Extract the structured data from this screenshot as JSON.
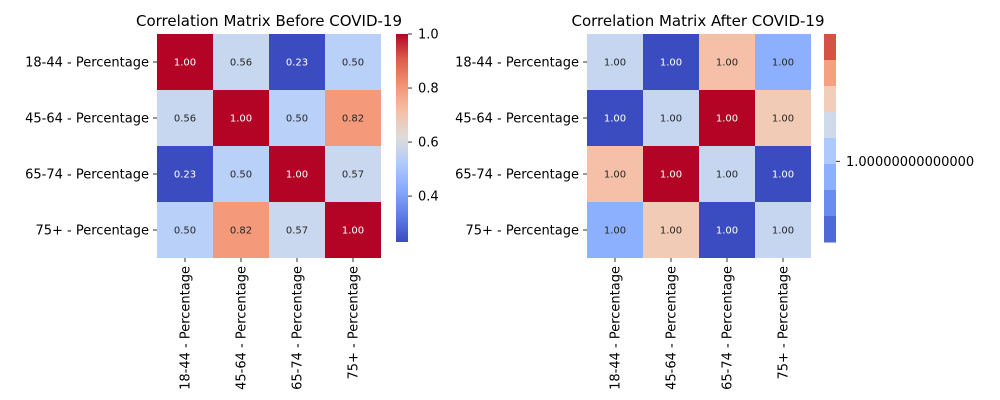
{
  "chart_data": [
    {
      "type": "heatmap",
      "title": "Correlation Matrix Before COVID-19",
      "rows": [
        "18-44 - Percentage",
        "45-64 - Percentage",
        "65-74 - Percentage",
        "75+ - Percentage"
      ],
      "columns": [
        "18-44 - Percentage",
        "45-64 - Percentage",
        "65-74 - Percentage",
        "75+ - Percentage"
      ],
      "values": [
        [
          1.0,
          0.56,
          0.23,
          0.5
        ],
        [
          0.56,
          1.0,
          0.5,
          0.82
        ],
        [
          0.23,
          0.5,
          1.0,
          0.57
        ],
        [
          0.5,
          0.82,
          0.57,
          1.0
        ]
      ],
      "cell_labels": [
        [
          "1.00",
          "0.56",
          "0.23",
          "0.50"
        ],
        [
          "0.56",
          "1.00",
          "0.50",
          "0.82"
        ],
        [
          "0.23",
          "0.50",
          "1.00",
          "0.57"
        ],
        [
          "0.50",
          "0.82",
          "0.57",
          "1.00"
        ]
      ],
      "colormap": "coolwarm",
      "colorbar": {
        "range": [
          0.23,
          1.0
        ],
        "tick_values": [
          0.4,
          0.6,
          0.8,
          1.0
        ],
        "tick_labels": [
          "0.4",
          "0.6",
          "0.8",
          "1.0"
        ]
      },
      "cell_colors": [
        [
          "#b40426",
          "#c7d7f0",
          "#3b4cc0",
          "#b9d0f9"
        ],
        [
          "#c7d7f0",
          "#b40426",
          "#b9d0f9",
          "#f49a7b"
        ],
        [
          "#3b4cc0",
          "#b9d0f9",
          "#b40426",
          "#cad8ef"
        ],
        [
          "#b9d0f9",
          "#f49a7b",
          "#cad8ef",
          "#b40426"
        ]
      ]
    },
    {
      "type": "heatmap",
      "title": "Correlation Matrix After COVID-19",
      "rows": [
        "18-44 - Percentage",
        "45-64 - Percentage",
        "65-74 - Percentage",
        "75+ - Percentage"
      ],
      "columns": [
        "18-44 - Percentage",
        "45-64 - Percentage",
        "65-74 - Percentage",
        "75+ - Percentage"
      ],
      "values": [
        [
          1.0,
          1.0,
          1.0,
          1.0
        ],
        [
          1.0,
          1.0,
          1.0,
          1.0
        ],
        [
          1.0,
          1.0,
          1.0,
          1.0
        ],
        [
          1.0,
          1.0,
          1.0,
          1.0
        ]
      ],
      "cell_labels": [
        [
          "1.00",
          "1.00",
          "1.00",
          "1.00"
        ],
        [
          "1.00",
          "1.00",
          "1.00",
          "1.00"
        ],
        [
          "1.00",
          "1.00",
          "1.00",
          "1.00"
        ],
        [
          "1.00",
          "1.00",
          "1.00",
          "1.00"
        ]
      ],
      "colormap": "coolwarm",
      "colorbar": {
        "tick_labels": [
          "1.00000000000000"
        ],
        "segment_colors": [
          "#d65244",
          "#f5a081",
          "#f1cdba",
          "#cfdaea",
          "#aec9fc",
          "#8caffe",
          "#6a8bef",
          "#4f69d9"
        ]
      },
      "cell_colors": [
        [
          "#c6d6f1",
          "#3b4cc0",
          "#f5c0a7",
          "#8db0fe"
        ],
        [
          "#3b4cc0",
          "#c6d6f1",
          "#b40426",
          "#f2cbb7"
        ],
        [
          "#f5c0a7",
          "#b40426",
          "#c6d6f1",
          "#3b4cc0"
        ],
        [
          "#8db0fe",
          "#f2cbb7",
          "#3b4cc0",
          "#c6d6f1"
        ]
      ]
    }
  ]
}
